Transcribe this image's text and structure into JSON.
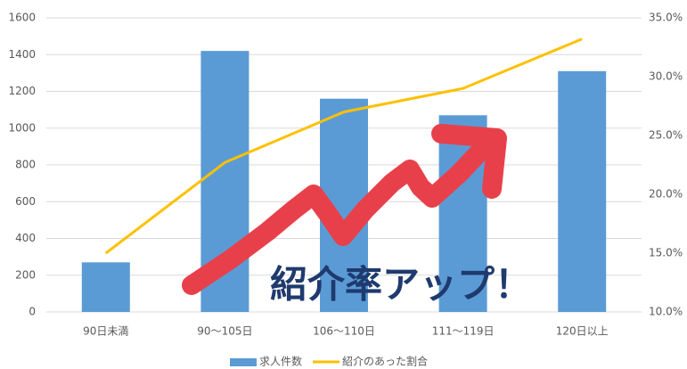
{
  "chart_data": {
    "type": "bar-line",
    "categories": [
      "90日未満",
      "90〜105日",
      "106〜110日",
      "111〜119日",
      "120日以上"
    ],
    "series": [
      {
        "name": "求人件数",
        "type": "bar",
        "color": "#5b9bd5",
        "values": [
          270,
          1420,
          1160,
          1070,
          1310
        ]
      },
      {
        "name": "紹介のあった割合",
        "type": "line",
        "axis": "y2",
        "color": "#ffc000",
        "values": [
          15.0,
          22.7,
          27.0,
          29.0,
          33.2
        ]
      }
    ],
    "ylim": [
      0,
      1600
    ],
    "yticks": [
      0,
      200,
      400,
      600,
      800,
      1000,
      1200,
      1400,
      1600
    ],
    "y2lim": [
      10,
      35
    ],
    "y2ticks": [
      {
        "value": 10,
        "label": "10.0%"
      },
      {
        "value": 15,
        "label": "15.0%"
      },
      {
        "value": 20,
        "label": "20.0%"
      },
      {
        "value": 25,
        "label": "25.0%"
      },
      {
        "value": 30,
        "label": "30.0%"
      },
      {
        "value": 35,
        "label": "35.0%"
      }
    ],
    "grid": true,
    "legend": "bottom",
    "annotation": "紹介率アップ！"
  }
}
